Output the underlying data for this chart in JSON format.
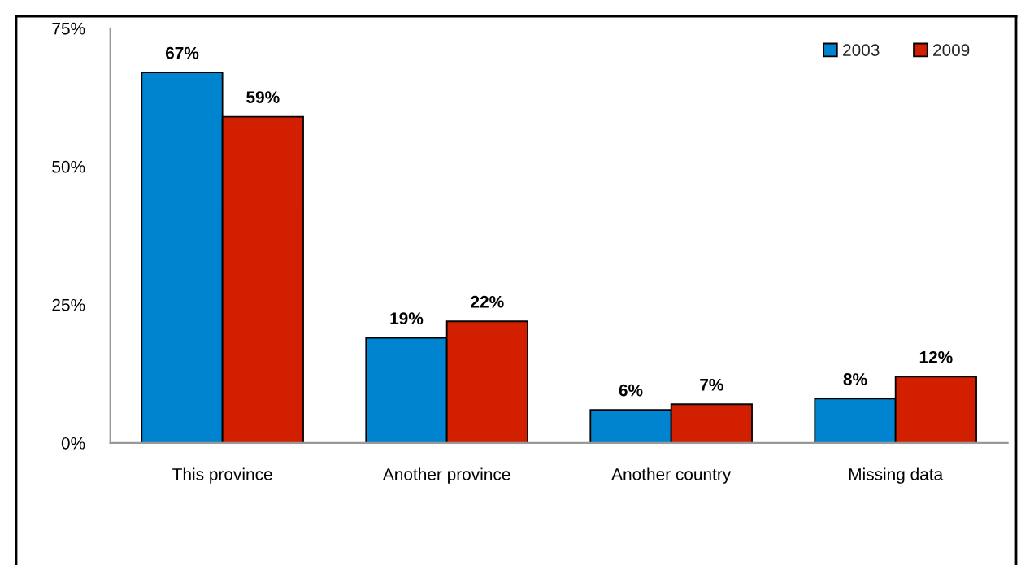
{
  "chart_data": {
    "type": "bar",
    "categories": [
      "This province",
      "Another province",
      "Another country",
      "Missing data"
    ],
    "series": [
      {
        "name": "2003",
        "color": "#0084cf",
        "values": [
          67,
          19,
          6,
          8
        ],
        "value_labels": [
          "67%",
          "19%",
          "6%",
          "8%"
        ]
      },
      {
        "name": "2009",
        "color": "#d11f00",
        "values": [
          59,
          22,
          7,
          12
        ],
        "value_labels": [
          "59%",
          "22%",
          "7%",
          "12%"
        ]
      }
    ],
    "ylim": [
      0,
      75
    ],
    "yticks": [
      {
        "value": 0,
        "label": "0%"
      },
      {
        "value": 25,
        "label": "25%"
      },
      {
        "value": 50,
        "label": "50%"
      },
      {
        "value": 75,
        "label": "75%"
      }
    ],
    "grid": false,
    "legend": "top right"
  }
}
